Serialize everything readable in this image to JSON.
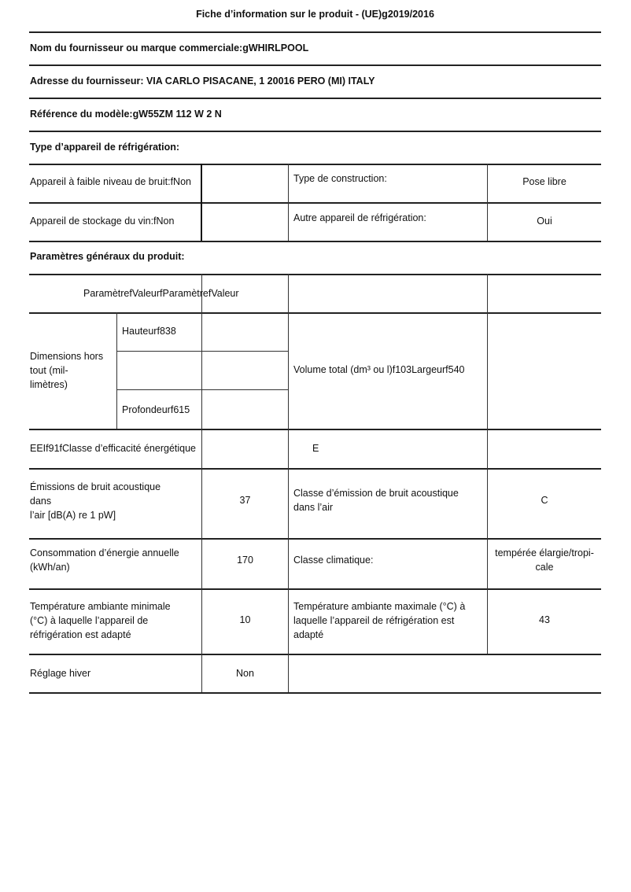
{
  "title": "Fiche d’information sur le produit - (UE)g2019/2016",
  "supplier_name": "Nom du fournisseur ou marque commerciale:gWHIRLPOOL",
  "supplier_address": "Adresse du fournisseur: VIA CARLO PISACANE, 1 20016 PERO (MI) ITALY",
  "model_reference": "Référence du modèle:gW55ZM 112 W 2 N",
  "appliance_type": {
    "heading": "Type d’appareil de réfrigération:",
    "low_noise": "Appareil à faible niveau de bruit:fNon",
    "construction_label": "Type de construction:",
    "construction_value": "Pose libre",
    "wine_storage": "Appareil de stockage du vin:fNon",
    "other_label": "Autre appareil de réfrigération:",
    "other_value": "Oui"
  },
  "general": {
    "heading": "Paramètres généraux du produit:",
    "header_row": "ParamètrefValeurfParamètrefValeur",
    "dimensions_label": "Dimensions hors tout (mil-limètres)",
    "dimensions_lines": [
      "Dimensions hors",
      "tout (mil-",
      "limètres)"
    ],
    "height": "Hauteurf838",
    "depth": "Profondeurf615",
    "volume": "Volume total (dm³ ou l)f103Largeurf540",
    "eei": "EEIf91fClasse d’efficacité énergétique",
    "energy_class": "E",
    "noise_label_lines": [
      "Émissions de bruit acoustique",
      "dans",
      "l’air [dB(A) re 1 pW]"
    ],
    "noise_value": "37",
    "noise_class_label_lines": [
      "Classe d’émission de bruit acoustique",
      "dans l’air"
    ],
    "noise_class_value": "C",
    "energy_label_lines": [
      "Consommation d’énergie annuelle",
      "(kWh/an)"
    ],
    "energy_value": "170",
    "climate_label": "Classe climatique:",
    "climate_value_lines": [
      "tempérée élargie/tropi-",
      "cale"
    ],
    "min_temp_lines": [
      "Température ambiante minimale",
      "(°C) à laquelle l’appareil de",
      "réfrigération est adapté"
    ],
    "min_temp_value": "10",
    "max_temp_lines": [
      "Température ambiante maximale (°C) à",
      "laquelle l’appareil de réfrigération est",
      "adapté"
    ],
    "max_temp_value": "43",
    "winter_label": "Réglage hiver",
    "winter_value": "Non"
  }
}
